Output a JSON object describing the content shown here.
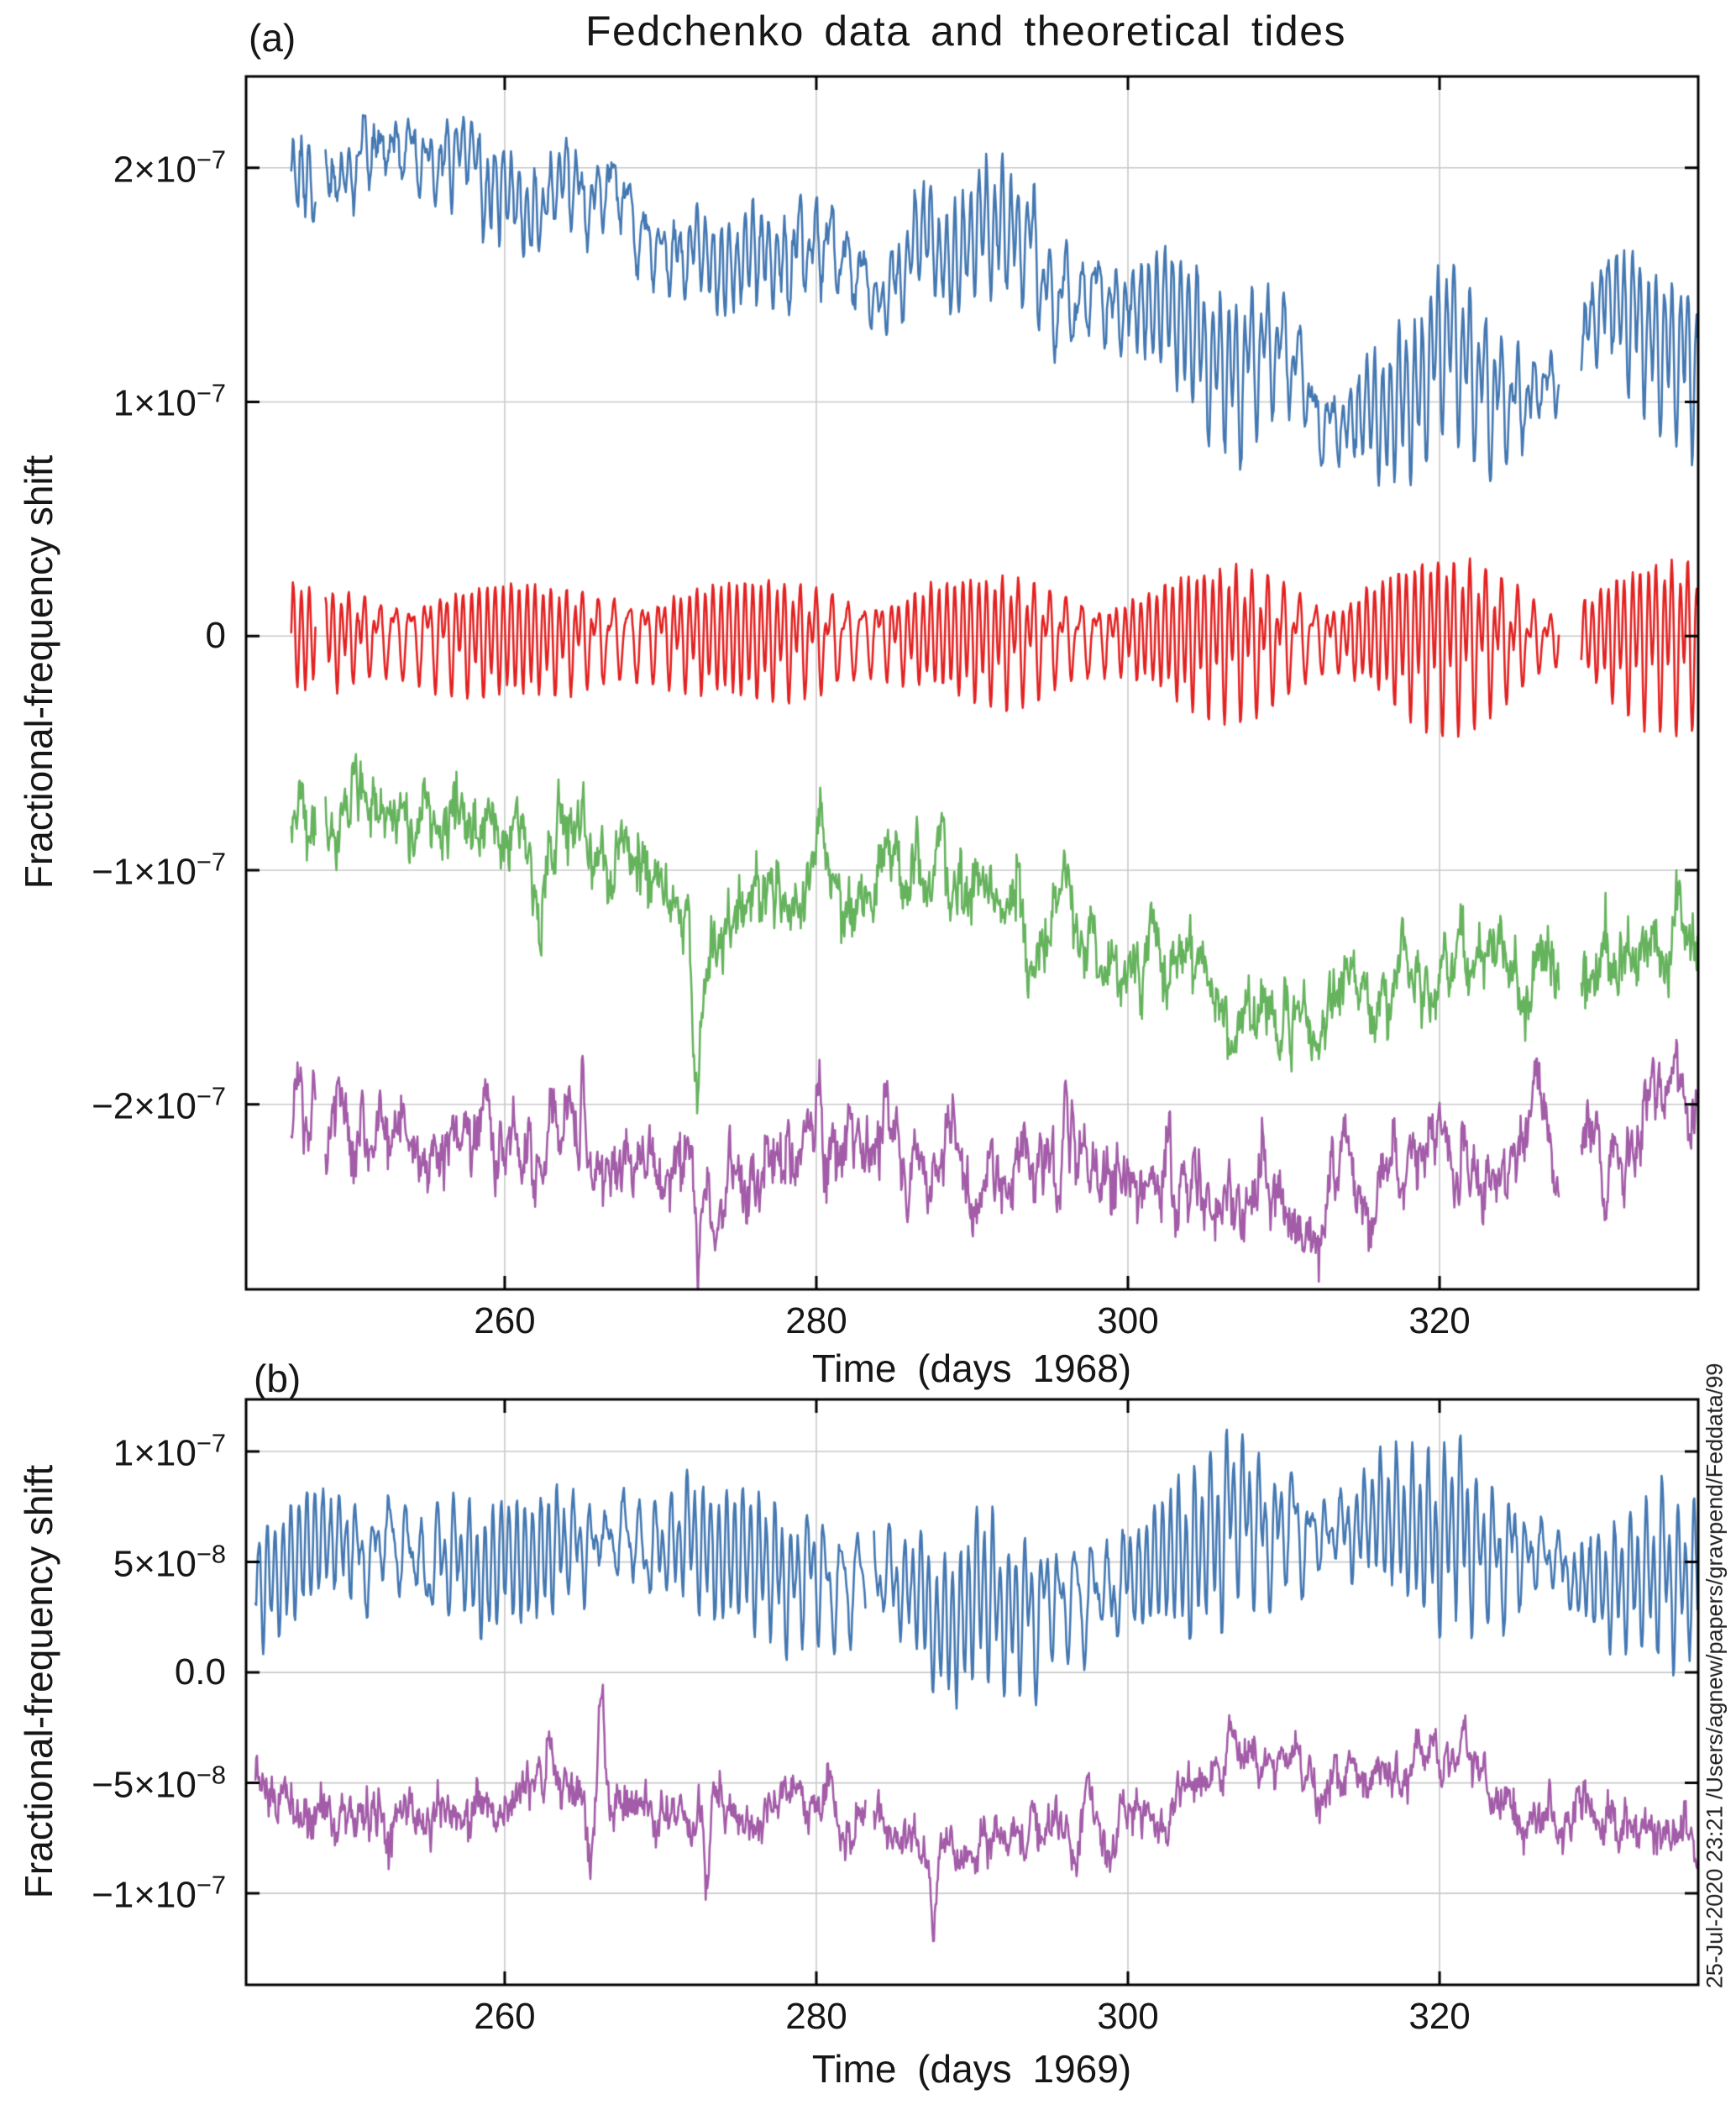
{
  "figure": {
    "title": "Fedchenko data  and theoretical tides",
    "panel_a_label": "(a)",
    "panel_b_label": "(b)",
    "side_note": "25-Jul-2020 23:21   /Users/agnew/papers/gravpend/Feddata/99",
    "background": "#ffffff",
    "frame_color": "#000000",
    "grid_color": "#c9c9c9"
  },
  "chart_data": [
    {
      "id": "panel_a",
      "type": "line",
      "xlabel": "Time (days 1968)",
      "ylabel": "Fractional-frequency shift",
      "xlim": [
        243.4,
        336.6
      ],
      "ylim": [
        -2.79e-07,
        2.39e-07
      ],
      "grid": true,
      "legend": "none",
      "x_start": 246.3,
      "x_end": 336.6,
      "gaps": [
        [
          247.9,
          248.5
        ],
        [
          327.7,
          329.1
        ]
      ],
      "xticks": [
        {
          "value": 260,
          "label": "260"
        },
        {
          "value": 280,
          "label": "280"
        },
        {
          "value": 300,
          "label": "300"
        },
        {
          "value": 320,
          "label": "320"
        }
      ],
      "yticks": [
        {
          "value": 2e-07,
          "label": "2×10^−7"
        },
        {
          "value": 1e-07,
          "label": "1×10^−7"
        },
        {
          "value": 0,
          "label": "0"
        },
        {
          "value": -1e-07,
          "label": "−1×10^−7"
        },
        {
          "value": -2e-07,
          "label": "−2×10^−7"
        }
      ],
      "series": [
        {
          "name": "blue-clock-data-with-tides",
          "color": "#4478b2",
          "seed": 11,
          "phase": 0.3,
          "tau": 3.0,
          "sigma": 9e-09,
          "jitter": 2e-09,
          "center": [
            [
              246.3,
              2.02e-07
            ],
            [
              250,
              1.97e-07
            ],
            [
              255,
              1.93e-07
            ],
            [
              260,
              1.87e-07
            ],
            [
              265,
              1.82e-07
            ],
            [
              270,
              1.72e-07
            ],
            [
              275,
              1.6e-07
            ],
            [
              280,
              1.62e-07
            ],
            [
              285,
              1.6e-07
            ],
            [
              290,
              1.55e-07
            ],
            [
              295,
              1.45e-07
            ],
            [
              300,
              1.3e-07
            ],
            [
              305,
              1.18e-07
            ],
            [
              310,
              1.05e-07
            ],
            [
              315,
              1.12e-07
            ],
            [
              320,
              1.2e-07
            ],
            [
              325,
              1.12e-07
            ],
            [
              328,
              1.1e-07
            ],
            [
              331,
              1.22e-07
            ],
            [
              334,
              1.15e-07
            ],
            [
              336.6,
              1.18e-07
            ]
          ],
          "amplitude": [
            [
              246.3,
              1.6e-08
            ],
            [
              270,
              1.9e-08
            ],
            [
              290,
              2.4e-08
            ],
            [
              305,
              3e-08
            ],
            [
              315,
              3.2e-08
            ],
            [
              336.6,
              2.9e-08
            ]
          ]
        },
        {
          "name": "red-theoretical-tide",
          "color": "#e32222",
          "seed": 22,
          "phase": 0.3,
          "tau": 1.0,
          "sigma": 5e-10,
          "jitter": 8e-10,
          "center": [
            [
              243.4,
              0
            ],
            [
              336.6,
              0
            ]
          ],
          "amplitude": [
            [
              246.3,
              2.4e-08
            ],
            [
              300,
              2.6e-08
            ],
            [
              315,
              3.2e-08
            ],
            [
              336.6,
              3e-08
            ]
          ]
        },
        {
          "name": "green-residual",
          "color": "#66b35e",
          "seed": 33,
          "tau": 0.5,
          "sigma": 2.2e-08,
          "jitter": 4e-09,
          "center": [
            [
              246.3,
              -8.5e-08
            ],
            [
              249,
              -7.8e-08
            ],
            [
              252,
              -7.4e-08
            ],
            [
              256,
              -8.2e-08
            ],
            [
              260,
              -8.8e-08
            ],
            [
              264,
              -9.2e-08
            ],
            [
              268,
              -1.02e-07
            ],
            [
              271,
              -1.15e-07
            ],
            [
              273,
              -1.28e-07
            ],
            [
              276,
              -1.18e-07
            ],
            [
              279,
              -1.02e-07
            ],
            [
              281,
              -1e-07
            ],
            [
              284,
              -1.12e-07
            ],
            [
              288,
              -1.15e-07
            ],
            [
              292,
              -1.18e-07
            ],
            [
              296,
              -1.22e-07
            ],
            [
              299,
              -1.32e-07
            ],
            [
              302,
              -1.42e-07
            ],
            [
              305,
              -1.45e-07
            ],
            [
              308,
              -1.58e-07
            ],
            [
              311,
              -1.6e-07
            ],
            [
              314,
              -1.55e-07
            ],
            [
              317,
              -1.48e-07
            ],
            [
              320,
              -1.45e-07
            ],
            [
              323,
              -1.42e-07
            ],
            [
              326,
              -1.38e-07
            ],
            [
              329,
              -1.42e-07
            ],
            [
              332,
              -1.38e-07
            ],
            [
              334,
              -1.32e-07
            ],
            [
              336.6,
              -1.35e-07
            ]
          ],
          "spikes": [
            [
              272.3,
              -5.5e-08,
              0.25
            ],
            [
              280.2,
              4e-08,
              0.2
            ],
            [
              265.0,
              2.5e-08,
              0.15
            ],
            [
              247.0,
              1.5e-08,
              0.15
            ],
            [
              310.5,
              -2e-08,
              0.15
            ],
            [
              333.0,
              8e-09,
              0.1
            ]
          ]
        },
        {
          "name": "purple-residual-offset",
          "color": "#a35ca8",
          "seed": 55,
          "tau": 0.5,
          "sigma": 2.2e-08,
          "jitter": 4e-09,
          "center": [
            [
              246.3,
              -2.18e-07
            ],
            [
              249,
              -2.12e-07
            ],
            [
              252,
              -2.1e-07
            ],
            [
              256,
              -2.16e-07
            ],
            [
              260,
              -2.2e-07
            ],
            [
              264,
              -2.18e-07
            ],
            [
              268,
              -2.24e-07
            ],
            [
              271,
              -2.3e-07
            ],
            [
              273,
              -2.38e-07
            ],
            [
              276,
              -2.3e-07
            ],
            [
              279,
              -2.16e-07
            ],
            [
              281,
              -2.14e-07
            ],
            [
              284,
              -2.22e-07
            ],
            [
              288,
              -2.24e-07
            ],
            [
              292,
              -2.26e-07
            ],
            [
              296,
              -2.22e-07
            ],
            [
              299,
              -2.32e-07
            ],
            [
              302,
              -2.38e-07
            ],
            [
              305,
              -2.4e-07
            ],
            [
              308,
              -2.48e-07
            ],
            [
              311,
              -2.5e-07
            ],
            [
              314,
              -2.42e-07
            ],
            [
              317,
              -2.35e-07
            ],
            [
              320,
              -2.3e-07
            ],
            [
              323,
              -2.25e-07
            ],
            [
              326,
              -2.18e-07
            ],
            [
              329,
              -2.2e-07
            ],
            [
              332,
              -2.12e-07
            ],
            [
              334,
              -2.05e-07
            ],
            [
              336.6,
              -2e-07
            ]
          ],
          "spikes": [
            [
              272.4,
              -4.2e-08,
              0.25
            ],
            [
              280.2,
              3e-08,
              0.2
            ],
            [
              265.0,
              3.5e-08,
              0.15
            ],
            [
              258.8,
              2e-08,
              0.12
            ],
            [
              296.0,
              2.5e-08,
              0.15
            ],
            [
              321.5,
              2e-08,
              0.12
            ]
          ]
        }
      ]
    },
    {
      "id": "panel_b",
      "type": "line",
      "xlabel": "Time (days 1969)",
      "ylabel": "Fractional-frequency shift",
      "xlim": [
        243.4,
        336.6
      ],
      "ylim": [
        -1.414e-07,
        1.236e-07
      ],
      "grid": true,
      "legend": "none",
      "x_start": 244.0,
      "x_end": 336.6,
      "gaps": [
        [
          283.2,
          283.7
        ]
      ],
      "xticks": [
        {
          "value": 260,
          "label": "260"
        },
        {
          "value": 280,
          "label": "280"
        },
        {
          "value": 300,
          "label": "300"
        },
        {
          "value": 320,
          "label": "320"
        }
      ],
      "yticks": [
        {
          "value": 1e-07,
          "label": "1×10^−7"
        },
        {
          "value": 5e-08,
          "label": "5×10^−8"
        },
        {
          "value": 0,
          "label": "0.0"
        },
        {
          "value": -5e-08,
          "label": "−5×10^−8"
        },
        {
          "value": -1e-07,
          "label": "−1×10^−7"
        }
      ],
      "series": [
        {
          "name": "blue-clock-data-with-tides",
          "color": "#4478b2",
          "seed": 44,
          "phase": 2.1,
          "tau": 1.5,
          "sigma": 8e-09,
          "jitter": 1.5e-09,
          "center": [
            [
              244,
              4.5e-08
            ],
            [
              250,
              4.8e-08
            ],
            [
              255,
              5.2e-08
            ],
            [
              260,
              5.5e-08
            ],
            [
              265,
              5.8e-08
            ],
            [
              270,
              5.6e-08
            ],
            [
              275,
              4.8e-08
            ],
            [
              280,
              4.2e-08
            ],
            [
              283,
              3.6e-08
            ],
            [
              286,
              3.2e-08
            ],
            [
              290,
              2.8e-08
            ],
            [
              294,
              3e-08
            ],
            [
              298,
              3.4e-08
            ],
            [
              302,
              4.5e-08
            ],
            [
              306,
              6.2e-08
            ],
            [
              310,
              6.8e-08
            ],
            [
              314,
              6.6e-08
            ],
            [
              318,
              7e-08
            ],
            [
              321,
              6.4e-08
            ],
            [
              324,
              5e-08
            ],
            [
              327,
              4.2e-08
            ],
            [
              330,
              3.8e-08
            ],
            [
              333,
              4.2e-08
            ],
            [
              336.6,
              4.4e-08
            ]
          ],
          "amplitude": [
            [
              244,
              2.6e-08
            ],
            [
              265,
              2.8e-08
            ],
            [
              288,
              3.4e-08
            ],
            [
              310,
              3.4e-08
            ],
            [
              336.6,
              3e-08
            ]
          ],
          "spikes": [
            [
              266.2,
              2.5e-08,
              0.15
            ]
          ]
        },
        {
          "name": "purple-residual",
          "color": "#a35ca8",
          "seed": 66,
          "tau": 0.4,
          "sigma": 1.6e-08,
          "jitter": 3e-09,
          "center": [
            [
              244,
              -5.5e-08
            ],
            [
              248,
              -5.8e-08
            ],
            [
              252,
              -6e-08
            ],
            [
              256,
              -6.2e-08
            ],
            [
              260,
              -6e-08
            ],
            [
              264,
              -5.6e-08
            ],
            [
              268,
              -5.8e-08
            ],
            [
              272,
              -6.4e-08
            ],
            [
              276,
              -6.2e-08
            ],
            [
              280,
              -6e-08
            ],
            [
              284,
              -7.2e-08
            ],
            [
              287,
              -8.2e-08
            ],
            [
              290,
              -7.8e-08
            ],
            [
              293,
              -7e-08
            ],
            [
              296,
              -7.2e-08
            ],
            [
              299,
              -7.8e-08
            ],
            [
              302,
              -6.5e-08
            ],
            [
              305,
              -4.5e-08
            ],
            [
              308,
              -3.5e-08
            ],
            [
              311,
              -4.5e-08
            ],
            [
              314,
              -4e-08
            ],
            [
              317,
              -4.8e-08
            ],
            [
              320,
              -3.8e-08
            ],
            [
              323,
              -5e-08
            ],
            [
              326,
              -5.8e-08
            ],
            [
              329,
              -6.5e-08
            ],
            [
              332,
              -6.8e-08
            ],
            [
              335,
              -7.2e-08
            ],
            [
              336.6,
              -7.5e-08
            ]
          ],
          "spikes": [
            [
              266.2,
              5e-08,
              0.2
            ],
            [
              273.0,
              -4.5e-08,
              0.2
            ],
            [
              287.5,
              -3e-08,
              0.25
            ],
            [
              306.5,
              1.5e-08,
              0.15
            ],
            [
              330.5,
              -2e-08,
              0.15
            ]
          ]
        }
      ]
    }
  ]
}
